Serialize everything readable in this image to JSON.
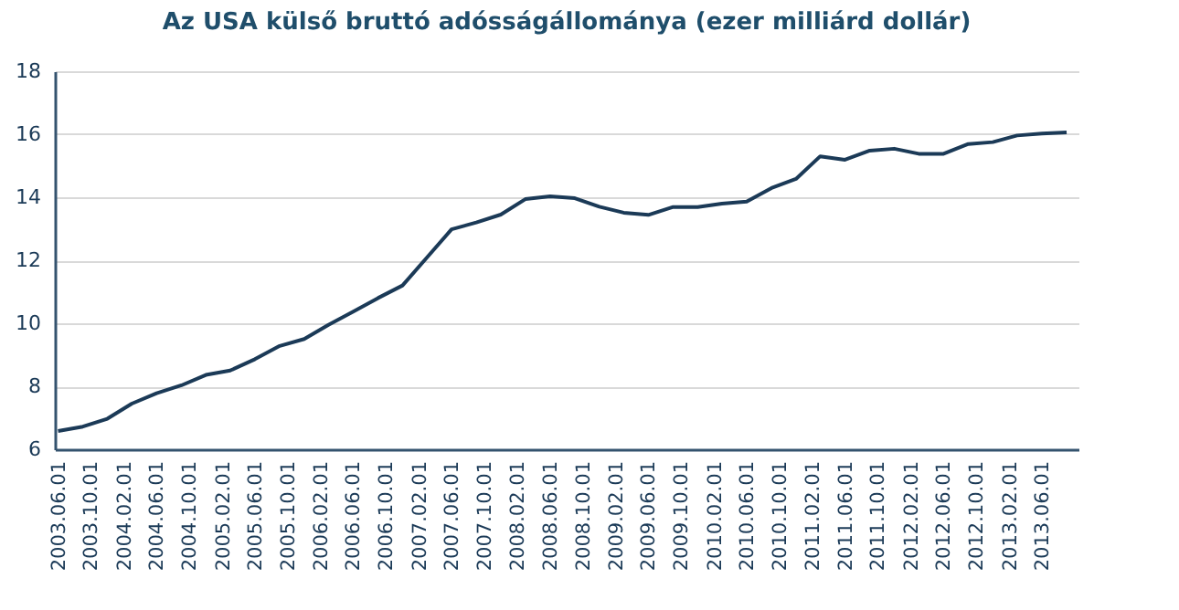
{
  "chart_data": {
    "type": "line",
    "title": "Az USA külső bruttó adósságállománya (ezer milliárd dollár)",
    "x": [
      "2003-06-01",
      "2003-09-01",
      "2003-12-01",
      "2004-03-01",
      "2004-06-01",
      "2004-09-01",
      "2004-12-01",
      "2005-03-01",
      "2005-06-01",
      "2005-09-01",
      "2005-12-01",
      "2006-03-01",
      "2006-06-01",
      "2006-09-01",
      "2006-12-01",
      "2007-03-01",
      "2007-06-01",
      "2007-09-01",
      "2007-12-01",
      "2008-03-01",
      "2008-06-01",
      "2008-09-01",
      "2008-12-01",
      "2009-03-01",
      "2009-06-01",
      "2009-09-01",
      "2009-12-01",
      "2010-03-01",
      "2010-06-01",
      "2010-09-01",
      "2010-12-01",
      "2011-03-01",
      "2011-06-01",
      "2011-09-01",
      "2011-12-01",
      "2012-03-01",
      "2012-06-01",
      "2012-09-01",
      "2012-12-01",
      "2013-03-01",
      "2013-06-01",
      "2013-09-01"
    ],
    "series": [
      {
        "color": "#1b3a57",
        "values": [
          6.58,
          6.72,
          6.97,
          7.45,
          7.78,
          8.03,
          8.36,
          8.5,
          8.86,
          9.28,
          9.5,
          9.95,
          10.37,
          10.8,
          11.2,
          12.08,
          12.98,
          13.2,
          13.45,
          13.94,
          14.03,
          13.97,
          13.7,
          13.51,
          13.44,
          13.69,
          13.69,
          13.8,
          13.86,
          14.29,
          14.58,
          15.3,
          15.19,
          15.48,
          15.54,
          15.38,
          15.38,
          15.69,
          15.75,
          15.96,
          16.02,
          16.06
        ]
      }
    ],
    "xlim": [
      "2003-05-20",
      "2013-10-15"
    ],
    "xticks": [
      {
        "value": "2003-06-01",
        "label": "2003.06.01"
      },
      {
        "value": "2003-10-01",
        "label": "2003.10.01"
      },
      {
        "value": "2004-02-01",
        "label": "2004.02.01"
      },
      {
        "value": "2004-06-01",
        "label": "2004.06.01"
      },
      {
        "value": "2004-10-01",
        "label": "2004.10.01"
      },
      {
        "value": "2005-02-01",
        "label": "2005.02.01"
      },
      {
        "value": "2005-06-01",
        "label": "2005.06.01"
      },
      {
        "value": "2005-10-01",
        "label": "2005.10.01"
      },
      {
        "value": "2006-02-01",
        "label": "2006.02.01"
      },
      {
        "value": "2006-06-01",
        "label": "2006.06.01"
      },
      {
        "value": "2006-10-01",
        "label": "2006.10.01"
      },
      {
        "value": "2007-02-01",
        "label": "2007.02.01"
      },
      {
        "value": "2007-06-01",
        "label": "2007.06.01"
      },
      {
        "value": "2007-10-01",
        "label": "2007.10.01"
      },
      {
        "value": "2008-02-01",
        "label": "2008.02.01"
      },
      {
        "value": "2008-06-01",
        "label": "2008.06.01"
      },
      {
        "value": "2008-10-01",
        "label": "2008.10.01"
      },
      {
        "value": "2009-02-01",
        "label": "2009.02.01"
      },
      {
        "value": "2009-06-01",
        "label": "2009.06.01"
      },
      {
        "value": "2009-10-01",
        "label": "2009.10.01"
      },
      {
        "value": "2010-02-01",
        "label": "2010.02.01"
      },
      {
        "value": "2010-06-01",
        "label": "2010.06.01"
      },
      {
        "value": "2010-10-01",
        "label": "2010.10.01"
      },
      {
        "value": "2011-02-01",
        "label": "2011.02.01"
      },
      {
        "value": "2011-06-01",
        "label": "2011.06.01"
      },
      {
        "value": "2011-10-01",
        "label": "2011.10.01"
      },
      {
        "value": "2012-02-01",
        "label": "2012.02.01"
      },
      {
        "value": "2012-06-01",
        "label": "2012.06.01"
      },
      {
        "value": "2012-10-01",
        "label": "2012.10.01"
      },
      {
        "value": "2013-02-01",
        "label": "2013.02.01"
      },
      {
        "value": "2013-06-01",
        "label": "2013.06.01"
      }
    ],
    "ylim": [
      6,
      18
    ],
    "yticks": [
      6,
      8,
      10,
      12,
      14,
      16,
      18
    ],
    "grid": "y"
  }
}
